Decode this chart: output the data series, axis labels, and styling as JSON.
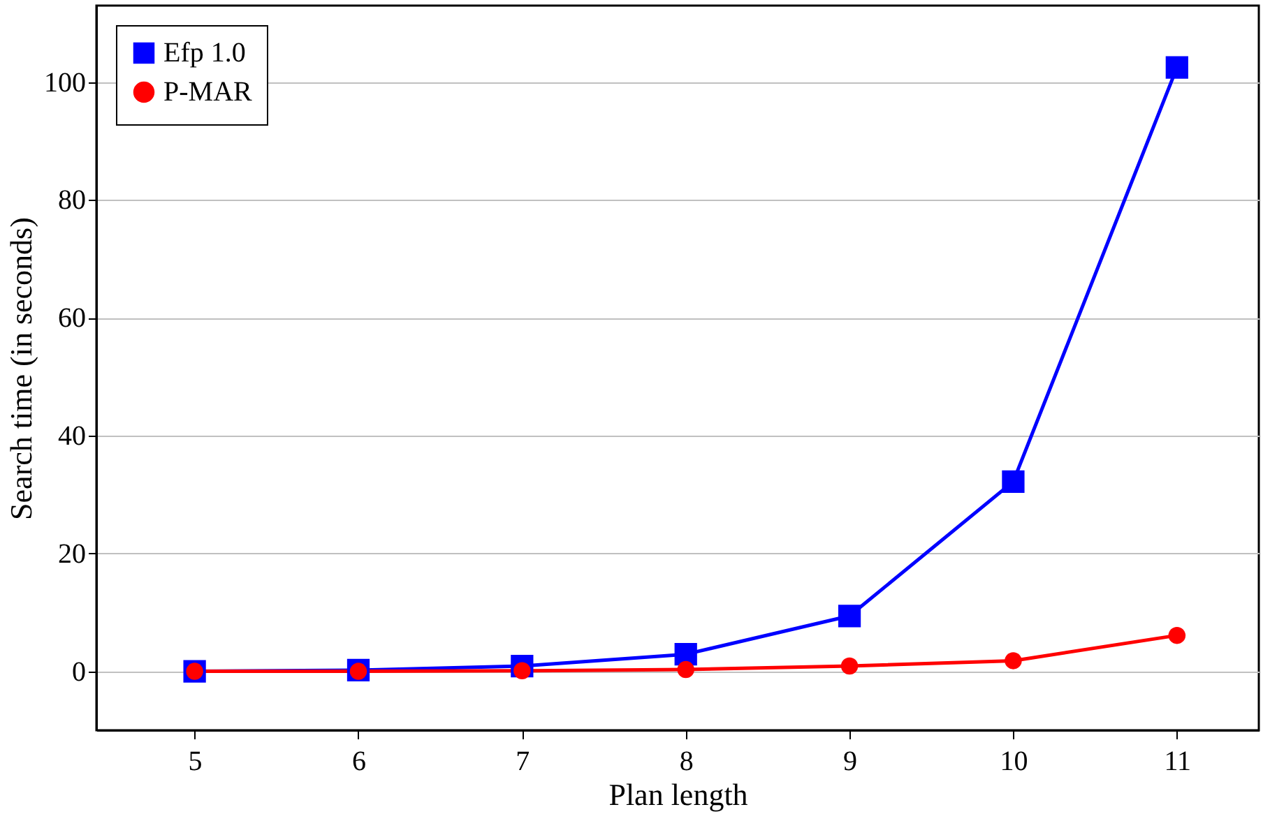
{
  "chart_data": {
    "type": "line",
    "xlabel": "Plan length",
    "ylabel": "Search time (in seconds)",
    "x": [
      5,
      6,
      7,
      8,
      9,
      10,
      11
    ],
    "series": [
      {
        "name": "Efp 1.0",
        "color": "#0000ff",
        "marker": "square",
        "values": [
          0,
          0.2,
          0.9,
          2.9,
          9.4,
          32.2,
          102.5
        ]
      },
      {
        "name": "P-MAR",
        "color": "#ff0000",
        "marker": "circle",
        "values": [
          0,
          0,
          0.1,
          0.3,
          0.9,
          1.8,
          6.1
        ]
      }
    ],
    "xlim": [
      4.4,
      11.5
    ],
    "xticks": [
      5,
      6,
      7,
      8,
      9,
      10,
      11
    ],
    "ylim": [
      -10,
      113
    ],
    "yticks": [
      0,
      20,
      40,
      60,
      80,
      100
    ],
    "grid": "y",
    "legend": "top left",
    "line_style": "solid"
  }
}
